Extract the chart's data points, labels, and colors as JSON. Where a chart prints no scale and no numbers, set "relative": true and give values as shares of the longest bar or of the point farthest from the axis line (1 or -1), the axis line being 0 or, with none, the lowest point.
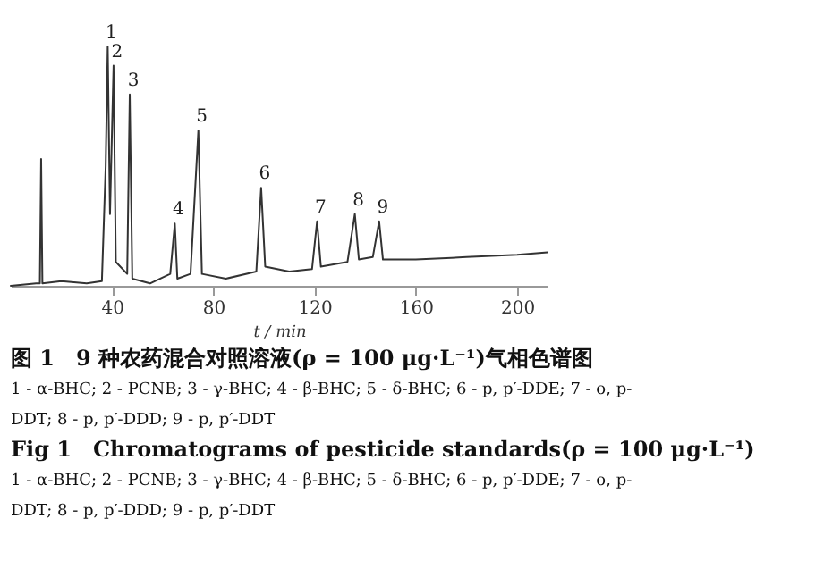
{
  "chart_data": {
    "type": "line",
    "title": "图 1　9 种农药混合对照溶液(ρ = 100 μg·L⁻¹)气相色谱图",
    "xlabel": "t / min",
    "relative": true,
    "grid": false,
    "legend": false,
    "marker": "none",
    "line_style": "solid",
    "xlim": [
      0,
      212
    ],
    "xticks": [
      40,
      80,
      120,
      160,
      200
    ],
    "x": [
      0,
      10,
      11.5,
      12,
      12.5,
      20,
      30,
      36,
      37.5,
      38.3,
      39.2,
      40.6,
      41.5,
      46,
      47,
      48,
      55,
      63,
      64.8,
      65.8,
      71,
      74.1,
      75.5,
      85,
      97,
      98.9,
      100.5,
      110,
      119,
      121,
      122.5,
      133,
      135.9,
      137.5,
      143,
      145.5,
      147,
      160,
      180,
      200,
      212
    ],
    "series": [
      {
        "color": "#333333",
        "values": [
          0,
          0.01,
          0.01,
          0.53,
          0.01,
          0.02,
          0.01,
          0.02,
          0.5,
          1.0,
          0.3,
          0.92,
          0.1,
          0.05,
          0.8,
          0.03,
          0.01,
          0.05,
          0.26,
          0.03,
          0.05,
          0.65,
          0.05,
          0.03,
          0.06,
          0.41,
          0.08,
          0.06,
          0.07,
          0.27,
          0.08,
          0.1,
          0.3,
          0.11,
          0.12,
          0.27,
          0.11,
          0.11,
          0.12,
          0.13,
          0.14
        ]
      }
    ],
    "annotations": [
      {
        "text": "1",
        "x": 38.3,
        "y": 1.0
      },
      {
        "text": "2",
        "x": 40.6,
        "y": 0.92
      },
      {
        "text": "3",
        "x": 47,
        "y": 0.8
      },
      {
        "text": "4",
        "x": 64.8,
        "y": 0.26
      },
      {
        "text": "5",
        "x": 74.1,
        "y": 0.65
      },
      {
        "text": "6",
        "x": 98.9,
        "y": 0.41
      },
      {
        "text": "7",
        "x": 121,
        "y": 0.27
      },
      {
        "text": "8",
        "x": 135.9,
        "y": 0.3
      },
      {
        "text": "9",
        "x": 145.5,
        "y": 0.27
      },
      "1 - α-BHC; 2 - PCNB; 3 - γ-BHC; 4 - β-BHC; 5 - δ-BHC; 6 - p, p′-DDE; 7 - o, p-",
      "DDT; 8 - p, p′-DDD; 9 - p, p′-DDT",
      "Fig 1　Chromatograms of pesticide standards(ρ = 100 μg·L⁻¹)",
      "1 - α-BHC; 2 - PCNB; 3 - γ-BHC; 4 - β-BHC; 5 - δ-BHC; 6 - p, p′-DDE; 7 - o, p-",
      "DDT; 8 - p, p′-DDD; 9 - p, p′-DDT"
    ]
  }
}
